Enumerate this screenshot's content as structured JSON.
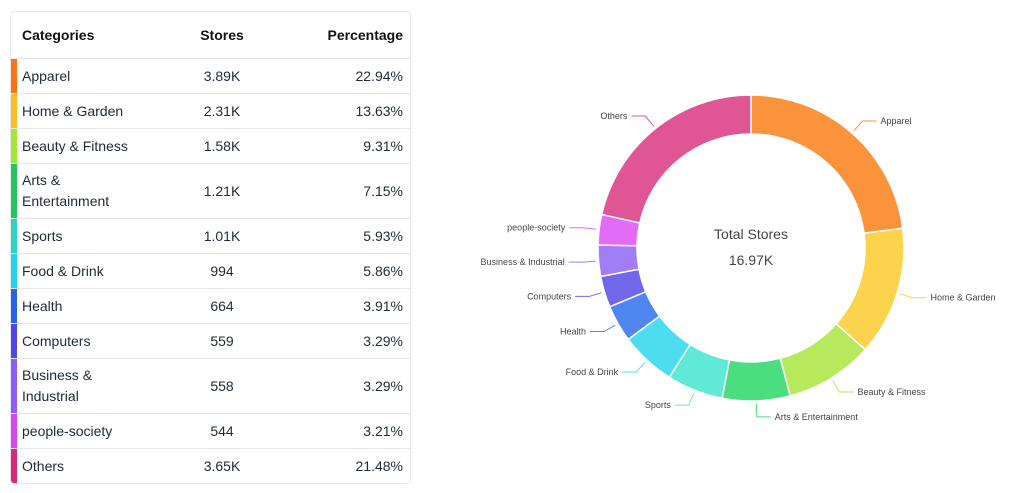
{
  "table": {
    "headers": [
      "Categories",
      "Stores",
      "Percentage"
    ],
    "rows": [
      {
        "category": "Apparel",
        "stores": "3.89K",
        "percentage": "22.94%",
        "color": "#f97316"
      },
      {
        "category": "Home & Garden",
        "stores": "2.31K",
        "percentage": "13.63%",
        "color": "#fbbf24"
      },
      {
        "category": "Beauty & Fitness",
        "stores": "1.58K",
        "percentage": "9.31%",
        "color": "#a3e635"
      },
      {
        "category": "Arts & Entertainment",
        "stores": "1.21K",
        "percentage": "7.15%",
        "color": "#22c55e"
      },
      {
        "category": "Sports",
        "stores": "1.01K",
        "percentage": "5.93%",
        "color": "#2dd4bf"
      },
      {
        "category": "Food & Drink",
        "stores": "994",
        "percentage": "5.86%",
        "color": "#22d3ee"
      },
      {
        "category": "Health",
        "stores": "664",
        "percentage": "3.91%",
        "color": "#2563eb"
      },
      {
        "category": "Computers",
        "stores": "559",
        "percentage": "3.29%",
        "color": "#4f46e5"
      },
      {
        "category": "Business & Industrial",
        "stores": "558",
        "percentage": "3.29%",
        "color": "#8b5cf6"
      },
      {
        "category": "people-society",
        "stores": "544",
        "percentage": "3.21%",
        "color": "#d946ef"
      },
      {
        "category": "Others",
        "stores": "3.65K",
        "percentage": "21.48%",
        "color": "#db2777"
      }
    ]
  },
  "chart_data": {
    "type": "pie",
    "donut": true,
    "center_title": "Total Stores",
    "center_value": "16.97K",
    "categories": [
      "Apparel",
      "Home & Garden",
      "Beauty & Fitness",
      "Arts & Entertainment",
      "Sports",
      "Food & Drink",
      "Health",
      "Computers",
      "Business & Industrial",
      "people-society",
      "Others"
    ],
    "values": [
      22.94,
      13.63,
      9.31,
      7.15,
      5.93,
      5.86,
      3.91,
      3.29,
      3.29,
      3.21,
      21.48
    ],
    "colors": [
      "#fb923c",
      "#fcd34d",
      "#b6ea5c",
      "#4ade80",
      "#5eead4",
      "#4ddcf0",
      "#4f86ef",
      "#7068e8",
      "#a07ef5",
      "#e26cf5",
      "#e05594"
    ]
  }
}
